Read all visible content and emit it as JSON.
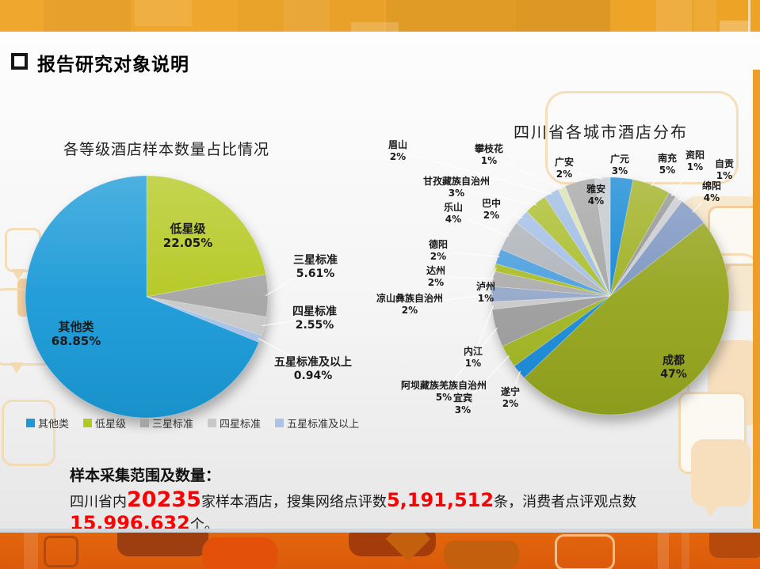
{
  "slide": {
    "title": "报告研究对象说明"
  },
  "footer": {
    "heading": "样本采集范围及数量：",
    "segments": [
      {
        "text": "四川省内",
        "style": "normal"
      },
      {
        "text": "20235",
        "style": "red-large"
      },
      {
        "text": "家样本酒店，搜集网络点评数",
        "style": "normal"
      },
      {
        "text": "5,191,512",
        "style": "red"
      },
      {
        "text": "条，消费者点评观点数",
        "style": "normal"
      },
      {
        "text": "15,996,632",
        "style": "red"
      },
      {
        "text": "个。",
        "style": "normal"
      }
    ]
  },
  "chart_data": [
    {
      "type": "pie",
      "title": "各等级酒店样本数量占比情况",
      "categories": [
        "低星级",
        "三星标准",
        "四星标准",
        "五星标准及以上",
        "其他类"
      ],
      "values": [
        22.05,
        5.61,
        2.55,
        0.94,
        68.85
      ],
      "display": [
        "22.05%",
        "5.61%",
        "2.55%",
        "0.94%",
        "68.85%"
      ],
      "colors": [
        "#B4C820",
        "#A5A5A5",
        "#C9C9C9",
        "#A9C3E9",
        "#1A9AD7"
      ],
      "start_angle": "12-oclock-clockwise",
      "legend_position": "bottom",
      "legend": [
        {
          "label": "其他类",
          "color": "#1A9AD7"
        },
        {
          "label": "低星级",
          "color": "#B4C820"
        },
        {
          "label": "三星标准",
          "color": "#A5A5A5"
        },
        {
          "label": "四星标准",
          "color": "#C9C9C9"
        },
        {
          "label": "五星标准及以上",
          "color": "#A9C3E9"
        }
      ]
    },
    {
      "type": "pie",
      "title": "四川省各城市酒店分布",
      "categories": [
        "广元",
        "南充",
        "资阳",
        "自贡",
        "绵阳",
        "成都",
        "遂宁",
        "宜宾",
        "阿坝藏族羌族自治州",
        "内江",
        "凉山彝族自治州",
        "达州",
        "泸州",
        "德阳",
        "乐山",
        "巴中",
        "甘孜藏族自治州",
        "眉山",
        "攀枝花",
        "雅安",
        "广安"
      ],
      "values": [
        3,
        5,
        1,
        1,
        4,
        47,
        2,
        3,
        5,
        1,
        2,
        2,
        1,
        2,
        4,
        2,
        3,
        2,
        1,
        4,
        2
      ],
      "display": [
        "3%",
        "5%",
        "1%",
        "1%",
        "4%",
        "47%",
        "2%",
        "3%",
        "5%",
        "1%",
        "2%",
        "2%",
        "1%",
        "2%",
        "4%",
        "2%",
        "3%",
        "2%",
        "1%",
        "4%",
        "2%"
      ],
      "colors": [
        "#1487D5",
        "#9FB021",
        "#939598",
        "#C9CBCE",
        "#7D96C0",
        "#95A51D",
        "#1B8CD9",
        "#A3B622",
        "#9E9E9E",
        "#CACACA",
        "#94A8CA",
        "#ADADAD",
        "#A9BC25",
        "#4C9FDE",
        "#B0B5BA",
        "#A4BFE6",
        "#ABBE2E",
        "#9FBCE4",
        "#D9E2B2",
        "#A6A6A6",
        "#C3C9CF"
      ],
      "start_angle": "12-oclock-clockwise",
      "legend_position": "none"
    }
  ]
}
